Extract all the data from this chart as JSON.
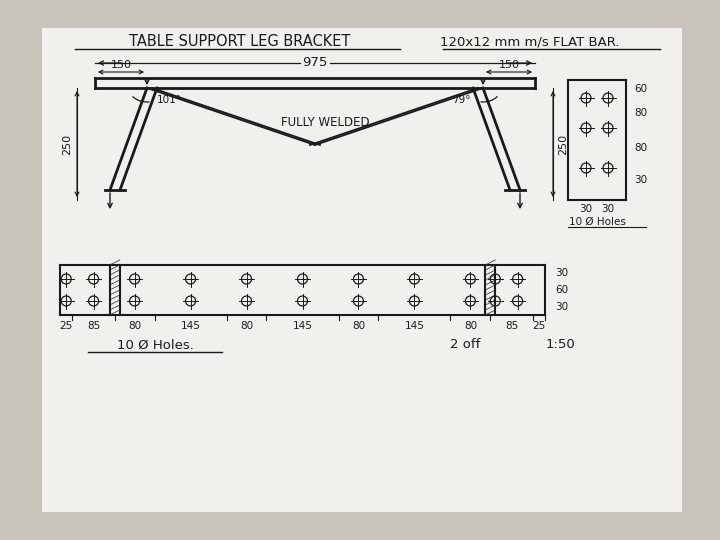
{
  "title": "TABLE SUPPORT LEG BRACKET",
  "subtitle": "120x12 mm m/s FLAT BAR.",
  "paper_color": "#f2f0ec",
  "bg_color": "#c8c4bb",
  "line_color": "#1a1a1a",
  "dim_975": "975",
  "dim_150": "150",
  "dim_250": "250",
  "angle_left": "101°",
  "angle_right": "79°",
  "fully_welded": "FULLY WELDED",
  "holes_note_top": "10 Ø Holes",
  "holes_note_bot": "10 Ø Holes.",
  "bottom_dims": [
    "25",
    "85",
    "80",
    "145",
    "80",
    "145",
    "80",
    "145",
    "80",
    "85",
    "25"
  ],
  "right_dims_v": [
    "60",
    "80",
    "80",
    "30"
  ],
  "right_dims_h": [
    "30",
    "30"
  ],
  "two_off": "2 off",
  "scale": "1:50"
}
